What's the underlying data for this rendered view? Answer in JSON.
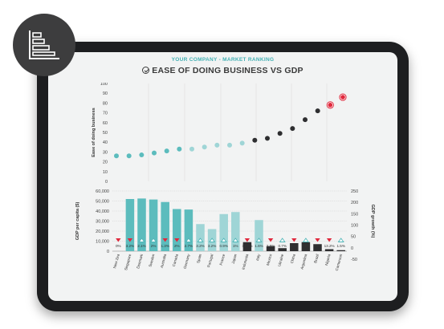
{
  "header": {
    "subtitle": "YOUR COMPANY - MARKET RANKING",
    "title": "EASE OF DOING BUSINESS VS GDP"
  },
  "badge": {
    "icon": "bar-chart-icon"
  },
  "colors": {
    "teal": "#5cbcbd",
    "light_teal": "#9fd5d6",
    "dark": "#2e2e30",
    "red": "#e0283c",
    "triangle_outline": "#4fb6b8"
  },
  "chart_data": [
    {
      "type": "scatter",
      "ylabel": "Ease of doing business",
      "ylim": [
        0,
        100
      ],
      "yticks": [
        "0",
        "10",
        "20",
        "30",
        "40",
        "50",
        "60",
        "70",
        "80",
        "90",
        "100"
      ],
      "points": [
        {
          "x": 1,
          "y": 26,
          "group": "teal"
        },
        {
          "x": 2,
          "y": 26,
          "group": "teal"
        },
        {
          "x": 3,
          "y": 27,
          "group": "teal"
        },
        {
          "x": 4,
          "y": 29,
          "group": "teal"
        },
        {
          "x": 5,
          "y": 31,
          "group": "teal"
        },
        {
          "x": 6,
          "y": 33,
          "group": "teal"
        },
        {
          "x": 7,
          "y": 33,
          "group": "light"
        },
        {
          "x": 8,
          "y": 35,
          "group": "light"
        },
        {
          "x": 9,
          "y": 37,
          "group": "light"
        },
        {
          "x": 10,
          "y": 37,
          "group": "light"
        },
        {
          "x": 11,
          "y": 39,
          "group": "light"
        },
        {
          "x": 12,
          "y": 42,
          "group": "dark"
        },
        {
          "x": 13,
          "y": 44,
          "group": "dark"
        },
        {
          "x": 14,
          "y": 49,
          "group": "dark"
        },
        {
          "x": 15,
          "y": 54,
          "group": "dark"
        },
        {
          "x": 16,
          "y": 63,
          "group": "dark"
        },
        {
          "x": 17,
          "y": 72,
          "group": "dark"
        },
        {
          "x": 18,
          "y": 78,
          "group": "red"
        },
        {
          "x": 19,
          "y": 86,
          "group": "red"
        }
      ]
    },
    {
      "type": "bar",
      "ylabel": "GDP per capita ($)",
      "y2label": "GDP growth (%)",
      "ylim": [
        0,
        60000
      ],
      "y2lim": [
        -50,
        250
      ],
      "yticks": [
        "0",
        "10,000",
        "20,000",
        "30,000",
        "40,000",
        "50,000",
        "60,000"
      ],
      "y2ticks": [
        "-50",
        "0",
        "50",
        "100",
        "150",
        "200",
        "250"
      ],
      "categories": [
        "New Zealand",
        "Singapore",
        "Denmark",
        "Sweden",
        "Australia",
        "Canada",
        "Germany",
        "Spain",
        "Portugal",
        "France",
        "Japan",
        "Indonesia",
        "Italy",
        "Mexico",
        "Ukraine",
        "China",
        "Argentina",
        "Brazil",
        "Nigeria",
        "Cameroon"
      ],
      "x_labels_visible": [
        "New Zea",
        "Singapore",
        "Denmark",
        "Sweden",
        "Australia",
        "Canada",
        "Germany",
        "Spain",
        "Portugal",
        "France",
        "Japan",
        "Indonesia",
        "Italy",
        "Mexico",
        "Ukraine",
        "China",
        "Argentina",
        "Brazil",
        "Nigeria",
        "Cameroon"
      ],
      "values": [
        0,
        52000,
        52500,
        51500,
        49000,
        42000,
        41500,
        27000,
        22000,
        37000,
        39000,
        9000,
        31000,
        5000,
        3000,
        8000,
        9000,
        7000,
        2000,
        1000
      ],
      "bar_groups": [
        "teal",
        "teal",
        "teal",
        "teal",
        "teal",
        "teal",
        "teal",
        "light",
        "light",
        "light",
        "light",
        "dark",
        "light",
        "dark",
        "dark",
        "dark",
        "dark",
        "dark",
        "dark",
        "dark"
      ],
      "growth_labels": [
        "0%",
        "3.2%",
        "2.1%",
        "2%",
        "1.3%",
        "2%",
        "2.7%",
        "3.2%",
        "3.2%",
        "0.9%",
        "1%",
        "12.7%",
        "1.6%",
        "2.9%",
        "0.7%",
        "2.3%",
        "7.6%",
        "3.2%",
        "13.2%",
        "1.5%"
      ],
      "growth_direction": [
        "down",
        "down",
        "up",
        "up",
        "down",
        "down",
        "up",
        "up",
        "up",
        "up",
        "up",
        "down",
        "up",
        "down",
        "up",
        "down",
        "up",
        "down",
        "down",
        "up"
      ]
    }
  ]
}
